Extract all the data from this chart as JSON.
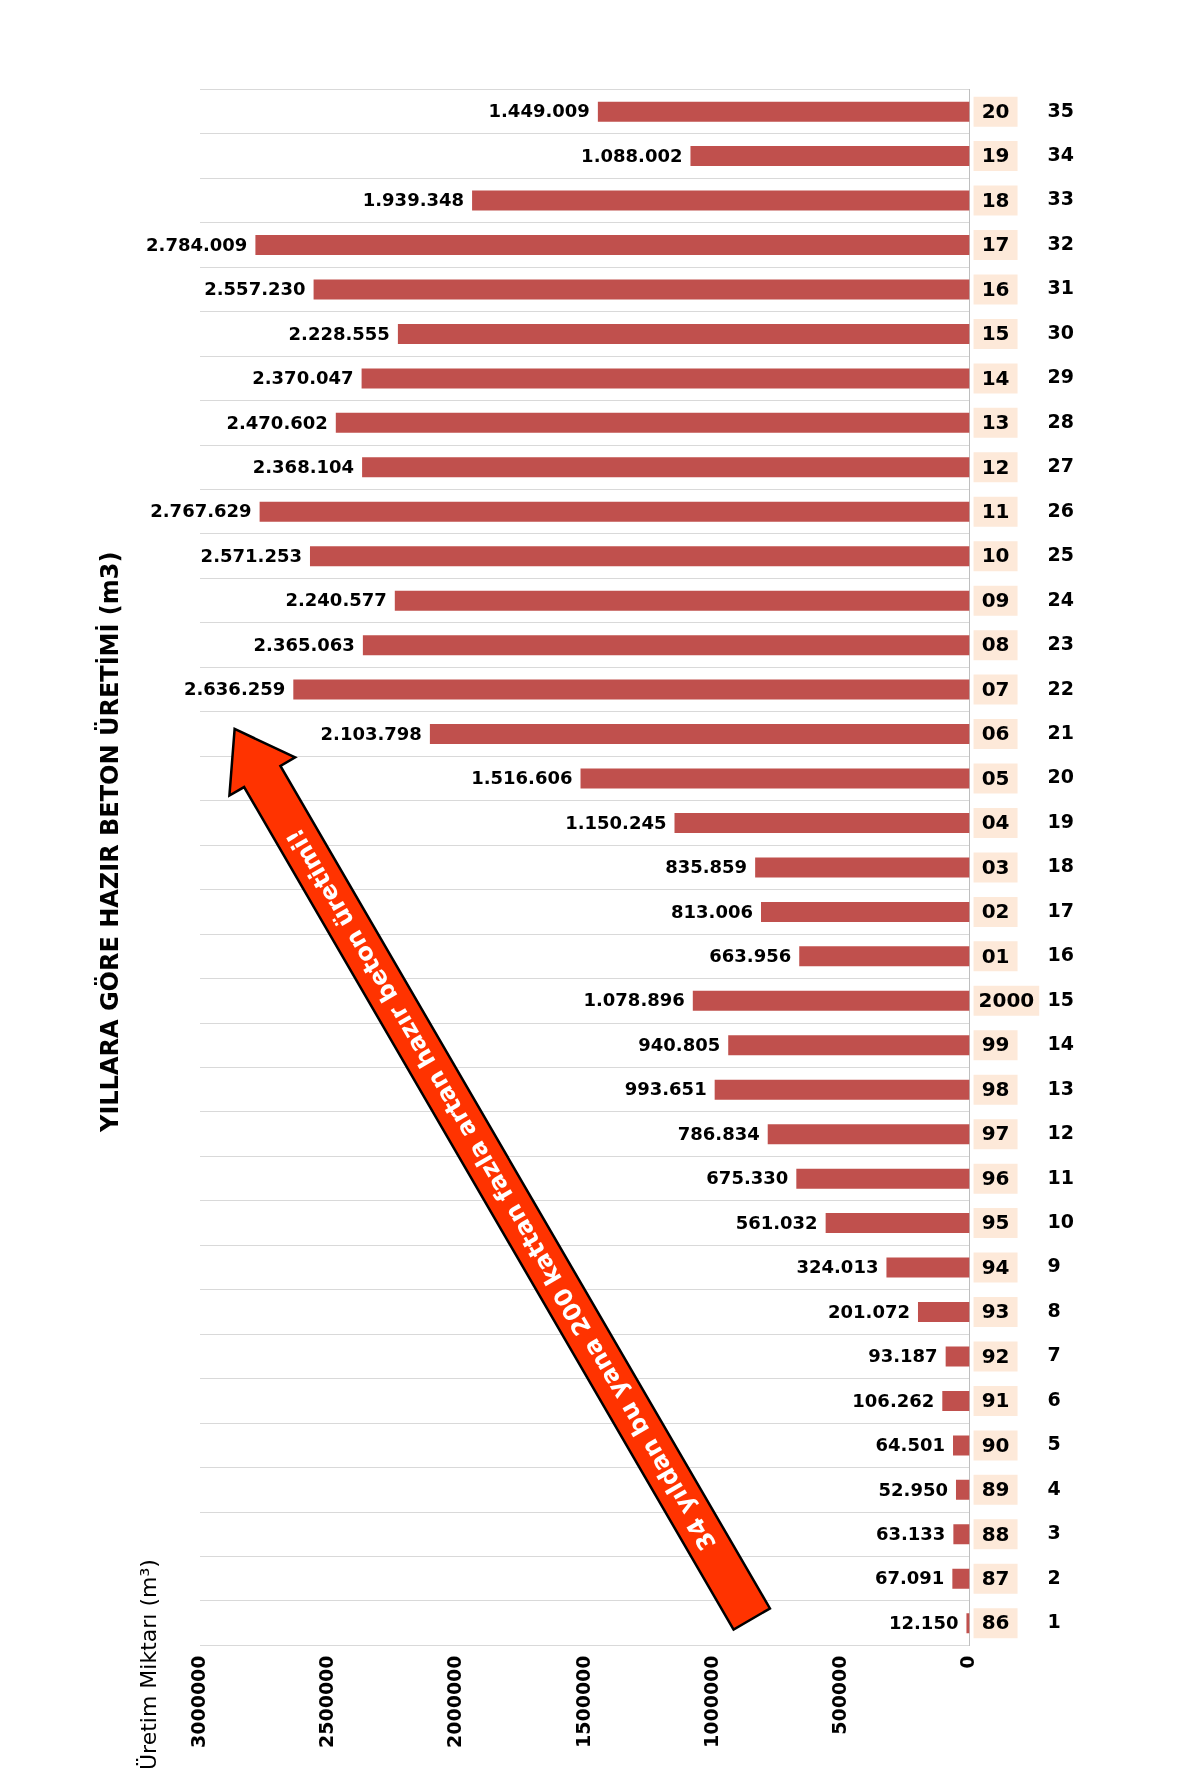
{
  "chart_data": {
    "type": "bar",
    "orientation": "horizontal",
    "title": "YILLARA GÖRE HAZIR BETON ÜRETİMİ (m3)",
    "ylabel": "Üretim Miktarı (m³)",
    "categories": [
      "35",
      "34",
      "33",
      "32",
      "31",
      "30",
      "29",
      "28",
      "27",
      "26",
      "25",
      "24",
      "23",
      "22",
      "21",
      "20",
      "19",
      "18",
      "17",
      "16",
      "15",
      "14",
      "13",
      "12",
      "11",
      "10",
      "9",
      "8",
      "7",
      "6",
      "5",
      "4",
      "3",
      "2",
      "1"
    ],
    "values": [
      1449009,
      1088002,
      1939348,
      2784009,
      2557230,
      2228555,
      2370047,
      2470602,
      2368104,
      2767629,
      2571253,
      2240577,
      2365063,
      2636259,
      2103798,
      1516606,
      1150245,
      835859,
      813006,
      663956,
      1078896,
      940805,
      993651,
      786834,
      675330,
      561032,
      324013,
      201072,
      93187,
      106262,
      64501,
      52950,
      63133,
      67091,
      12150
    ],
    "value_labels": [
      "1.449.009",
      "1.088.002",
      "1.939.348",
      "2.784.009",
      "2.557.230",
      "2.228.555",
      "2.370.047",
      "2.470.602",
      "2.368.104",
      "2.767.629",
      "2.571.253",
      "2.240.577",
      "2.365.063",
      "2.636.259",
      "2.103.798",
      "1.516.606",
      "1.150.245",
      "835.859",
      "813.006",
      "663.956",
      "1.078.896",
      "940.805",
      "993.651",
      "786.834",
      "675.330",
      "561.032",
      "324.013",
      "201.072",
      "93.187",
      "106.262",
      "64.501",
      "52.950",
      "63.133",
      "67.091",
      "12.150"
    ],
    "color": "#c0504d",
    "xlim": [
      3000000,
      0
    ],
    "xticks": [
      0,
      500000,
      1000000,
      1500000,
      2000000,
      2500000,
      3000000
    ],
    "grid": "y",
    "legend": false,
    "annotations": [
      "34 yıldan bu yana 200 kattan fazla artan hazır beton üretimi!",
      "20",
      "19",
      "18",
      "17",
      "16",
      "15",
      "14",
      "13",
      "12",
      "11",
      "10",
      "09",
      "08",
      "07",
      "06",
      "05",
      "04",
      "03",
      "02",
      "01",
      "2000",
      "99",
      "98",
      "97",
      "96",
      "95",
      "94",
      "93",
      "92",
      "91",
      "90",
      "89",
      "88",
      "87",
      "86"
    ]
  }
}
